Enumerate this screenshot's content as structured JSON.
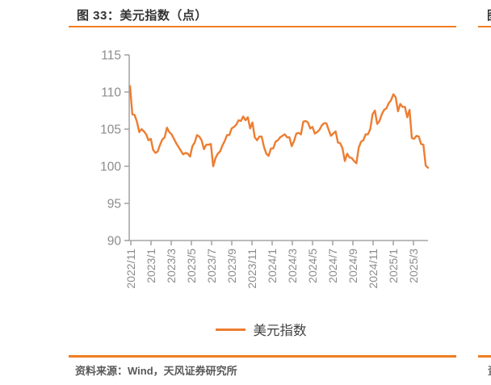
{
  "theme": {
    "background": "#FFFFFF",
    "accent_orange": "#EF7E22",
    "line_orange": "#ED7D31",
    "axis_gray": "#A6A6A6",
    "tick_label_gray": "#8C8C8C",
    "title_color": "#333333",
    "source_color": "#595959",
    "legend_text_color": "#404040"
  },
  "figure": {
    "title": "图 33：美元指数（点）",
    "legend_label": "美元指数",
    "source_note": "资料来源：Wind，天风证券研究所"
  },
  "adjacent_figure_fragment": {
    "title_fragment": "图",
    "source_fragment": "资"
  },
  "chart_data": {
    "type": "line",
    "title": "图 33：美元指数（点）",
    "ylabel": "",
    "xlabel": "",
    "unit": "点",
    "grid": false,
    "legend_position": "bottom-center",
    "ylim": [
      90,
      115
    ],
    "y_ticks": [
      90,
      95,
      100,
      105,
      110,
      115
    ],
    "x_tick_labels": [
      "2022/11",
      "2023/1",
      "2023/3",
      "2023/5",
      "2023/7",
      "2023/9",
      "2023/11",
      "2024/1",
      "2024/3",
      "2024/5",
      "2024/7",
      "2024/9",
      "2024/11",
      "2025/1",
      "2025/3"
    ],
    "x_start": "2022/11",
    "x_end": "2025/4",
    "frequency": "weekly",
    "series": [
      {
        "name": "美元指数",
        "color": "#ED7D31",
        "values": [
          110.8,
          107.0,
          106.9,
          106.0,
          104.6,
          105.0,
          104.7,
          104.3,
          103.5,
          103.7,
          102.2,
          101.8,
          102.0,
          102.9,
          103.6,
          103.9,
          105.2,
          104.6,
          104.3,
          103.7,
          103.1,
          102.6,
          102.1,
          101.6,
          101.8,
          101.7,
          101.3,
          102.7,
          103.2,
          104.2,
          104.0,
          103.5,
          102.3,
          102.9,
          102.9,
          103.0,
          100.0,
          101.1,
          101.7,
          102.0,
          102.8,
          103.4,
          104.2,
          104.2,
          105.1,
          105.3,
          105.6,
          106.2,
          106.1,
          106.7,
          106.2,
          106.6,
          105.1,
          105.9,
          103.9,
          103.5,
          104.0,
          104.0,
          102.6,
          101.7,
          101.4,
          102.4,
          102.4,
          103.3,
          103.5,
          103.9,
          104.1,
          104.3,
          103.9,
          103.9,
          102.7,
          103.4,
          104.4,
          104.5,
          104.3,
          106.0,
          106.1,
          105.9,
          105.1,
          105.3,
          104.4,
          104.6,
          104.9,
          105.5,
          105.8,
          105.8,
          104.9,
          104.1,
          104.4,
          104.7,
          103.2,
          103.1,
          102.4,
          100.7,
          101.7,
          101.2,
          101.1,
          100.7,
          100.4,
          102.5,
          103.3,
          103.5,
          104.3,
          104.3,
          105.0,
          107.0,
          107.5,
          105.7,
          106.1,
          107.0,
          107.6,
          107.8,
          108.5,
          108.9,
          109.7,
          109.3,
          107.4,
          108.4,
          108.0,
          108.0,
          106.6,
          107.6,
          103.8,
          103.7,
          104.1,
          104.0,
          103.0,
          102.9,
          100.1,
          99.8
        ]
      }
    ]
  }
}
